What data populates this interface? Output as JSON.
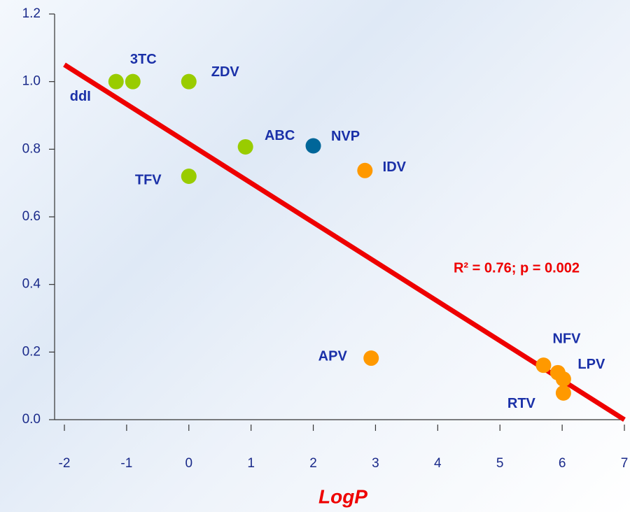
{
  "chart_data": {
    "type": "scatter",
    "xlabel": "LogP",
    "annotation": "R² = 0.76; p = 0.002",
    "labels": [
      "ddI",
      "3TC",
      "ZDV",
      "ABC",
      "NVP",
      "TFV",
      "IDV",
      "APV",
      "NFV",
      "LPV",
      null,
      "RTV"
    ],
    "x": [
      -1.17,
      -0.9,
      0,
      0.91,
      2.0,
      0,
      2.83,
      2.93,
      5.7,
      5.93,
      6.02,
      6.02
    ],
    "values": [
      1.0,
      1.0,
      1.0,
      0.807,
      0.81,
      0.72,
      0.737,
      0.182,
      0.161,
      0.139,
      0.12,
      0.079
    ],
    "colors": [
      "#99cc00",
      "#99cc00",
      "#99cc00",
      "#99cc00",
      "#006699",
      "#99cc00",
      "#ff9900",
      "#ff9900",
      "#ff9900",
      "#ff9900",
      "#ff9900",
      "#ff9900"
    ],
    "trendline": {
      "x": [
        -2,
        7
      ],
      "y": [
        1.05,
        0.0
      ],
      "color": "#ee0000"
    },
    "xlim": [
      -2,
      7
    ],
    "xticks": [
      -2,
      -1,
      0,
      1,
      2,
      3,
      4,
      5,
      6,
      7
    ],
    "ylim": [
      0,
      1.2
    ],
    "yticks": [
      {
        "value": 0,
        "label": "0.0"
      },
      0.2,
      0.4,
      0.6,
      0.8,
      {
        "value": 1,
        "label": "1.0"
      },
      1.2
    ]
  }
}
